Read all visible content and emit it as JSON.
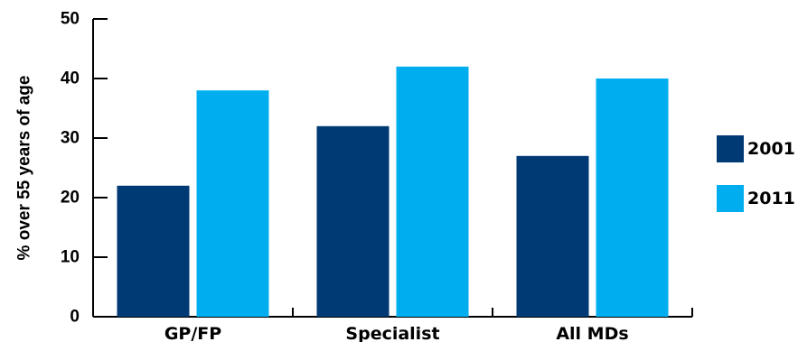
{
  "chart_data": {
    "type": "bar",
    "title": "",
    "xlabel": "",
    "ylabel": "% over 55 years of age",
    "categories": [
      "GP/FP",
      "Specialist",
      "All MDs"
    ],
    "series": [
      {
        "name": "2001",
        "values": [
          22,
          32,
          27
        ],
        "color": "#003a75"
      },
      {
        "name": "2011",
        "values": [
          38,
          42,
          40
        ],
        "color": "#00aeef"
      }
    ],
    "ylim": [
      0,
      50
    ],
    "yticks": [
      0,
      10,
      20,
      30,
      40,
      50
    ],
    "grid": false,
    "legend": "right"
  }
}
